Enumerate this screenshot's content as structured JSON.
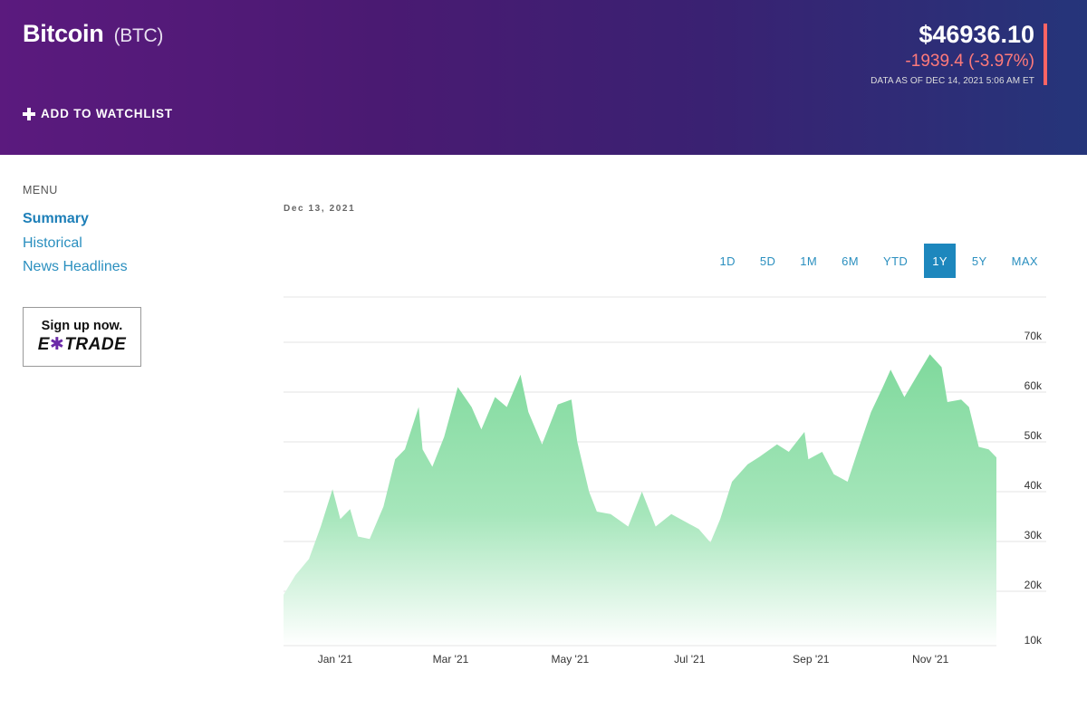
{
  "header": {
    "title": "Bitcoin",
    "ticker": "(BTC)",
    "watchlist_label": "ADD TO WATCHLIST",
    "price": "$46936.10",
    "change": "-1939.4 (-3.97%)",
    "as_of": "DATA AS OF DEC 14, 2021 5:06 AM ET"
  },
  "sidebar": {
    "menu_label": "MENU",
    "items": [
      {
        "label": "Summary",
        "active": true
      },
      {
        "label": "Historical",
        "active": false
      },
      {
        "label": "News Headlines",
        "active": false
      }
    ],
    "ad": {
      "line1": "Sign up now.",
      "brand_pre": "E",
      "brand_x": "✱",
      "brand_post": "TRADE"
    }
  },
  "chart": {
    "date_label": "Dec 13, 2021",
    "ranges": [
      "1D",
      "5D",
      "1M",
      "6M",
      "YTD",
      "1Y",
      "5Y",
      "MAX"
    ],
    "active_range": "1Y"
  },
  "colors": {
    "accent": "#1d87bd",
    "negative": "#ff6464",
    "area_top": "#7fd99c",
    "area_bottom": "#ffffff"
  },
  "chart_data": {
    "type": "area",
    "x": [
      "2020-12-14",
      "2020-12-20",
      "2020-12-27",
      "2021-01-02",
      "2021-01-08",
      "2021-01-12",
      "2021-01-17",
      "2021-01-21",
      "2021-01-27",
      "2021-02-03",
      "2021-02-09",
      "2021-02-14",
      "2021-02-21",
      "2021-02-23",
      "2021-02-28",
      "2021-03-06",
      "2021-03-13",
      "2021-03-20",
      "2021-03-25",
      "2021-04-01",
      "2021-04-07",
      "2021-04-14",
      "2021-04-18",
      "2021-04-25",
      "2021-05-03",
      "2021-05-10",
      "2021-05-13",
      "2021-05-19",
      "2021-05-23",
      "2021-05-30",
      "2021-06-08",
      "2021-06-15",
      "2021-06-22",
      "2021-06-30",
      "2021-07-07",
      "2021-07-14",
      "2021-07-20",
      "2021-07-25",
      "2021-07-31",
      "2021-08-08",
      "2021-08-14",
      "2021-08-23",
      "2021-08-29",
      "2021-09-06",
      "2021-09-08",
      "2021-09-15",
      "2021-09-21",
      "2021-09-28",
      "2021-10-03",
      "2021-10-10",
      "2021-10-16",
      "2021-10-20",
      "2021-10-27",
      "2021-11-02",
      "2021-11-09",
      "2021-11-15",
      "2021-11-18",
      "2021-11-25",
      "2021-11-29",
      "2021-12-04",
      "2021-12-09",
      "2021-12-13"
    ],
    "values": [
      19300,
      23200,
      26500,
      33000,
      40500,
      34500,
      36500,
      31000,
      30500,
      37000,
      46500,
      48500,
      57000,
      48500,
      45000,
      51000,
      61000,
      57000,
      52500,
      59000,
      57000,
      63500,
      56000,
      49500,
      57500,
      58500,
      50000,
      40000,
      36000,
      35500,
      33000,
      40000,
      33000,
      35500,
      34000,
      32500,
      29800,
      34500,
      42000,
      45500,
      47000,
      49500,
      48000,
      52000,
      46500,
      48000,
      43500,
      42000,
      48000,
      56000,
      61000,
      64500,
      59000,
      63000,
      67600,
      65000,
      58000,
      58500,
      57000,
      49000,
      48500,
      46900
    ],
    "y_ticks": [
      "10k",
      "20k",
      "30k",
      "40k",
      "50k",
      "60k",
      "70k"
    ],
    "x_ticks": [
      "Jan '21",
      "Mar '21",
      "May '21",
      "Jul '21",
      "Sep '21",
      "Nov '21"
    ],
    "ylim": [
      10000,
      80000
    ],
    "grid": true
  }
}
